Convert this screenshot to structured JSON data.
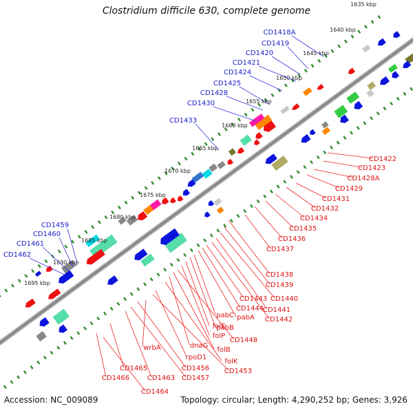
{
  "title": "Clostridium difficile 630, complete genome",
  "footer": {
    "accession": "Accession: NC_009089",
    "summary": "Topology: circular; Length: 4,290,252 bp; Genes: 3,926"
  },
  "colors": {
    "backbone": "#8a8a8a",
    "tick": "#2e8b2e",
    "label_outer": "#1a1acc",
    "label_inner": "#dd1111",
    "leader_outer": "#3333dd",
    "leader_inner": "#ee2222"
  },
  "ticks": [
    "1635 kbp",
    "1640 kbp",
    "1645 kbp",
    "1650 kbp",
    "1655 kbp",
    "1660 kbp",
    "1665 kbp",
    "1670 kbp",
    "1675 kbp",
    "1680 kbp",
    "1685 kbp",
    "1690 kbp",
    "1695 kbp"
  ],
  "outer_labels": [
    "CD1418A",
    "CD1419",
    "CD1420",
    "CD1421",
    "CD1424",
    "CD1425",
    "CD1428",
    "CD1430",
    "CD1433",
    "CD1459",
    "CD1460",
    "CD1461",
    "CD1462"
  ],
  "inner_labels": [
    "CD1422",
    "CD1423",
    "CD1428A",
    "CD1429",
    "CD1431",
    "CD1432",
    "CD1434",
    "CD1435",
    "CD1436",
    "CD1437",
    "CD1438",
    "CD1439",
    "CD1440",
    "CD1441",
    "CD1442",
    "CD1443",
    "CD1444",
    "pabA",
    "pabC",
    "pabB",
    "folE",
    "folP",
    "CD1448",
    "folB",
    "dnaG",
    "folK",
    "wrbA",
    "rpoD1",
    "CD1453",
    "CD1456",
    "CD1457",
    "CD1463",
    "CD1465",
    "CD1466",
    "CD1464"
  ]
}
